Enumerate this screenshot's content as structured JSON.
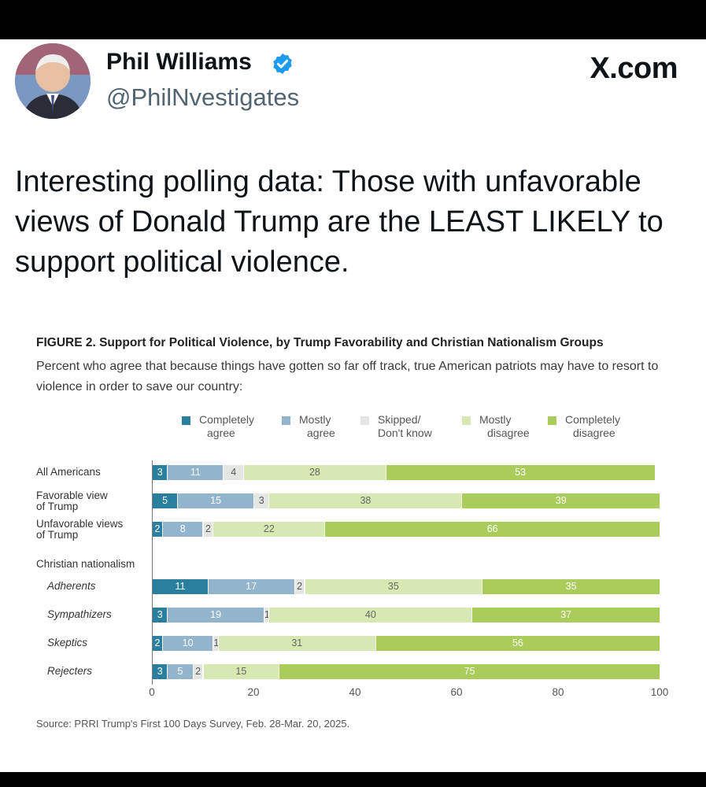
{
  "tweet": {
    "author_name": "Phil Williams",
    "handle": "@PhilNvestigates",
    "site_logo": "X.com",
    "text": "Interesting polling data: Those with unfavorable views of Donald Trump are the LEAST LIKELY to support political violence.",
    "verified_color": "#1d9bf0"
  },
  "figure": {
    "title": "FIGURE 2.  Support for Political Violence, by Trump Favorability and Christian Nationalism Groups",
    "subtitle": "Percent who agree that because things have gotten so far off track, true American patriots may have to resort to violence in order to save our country:",
    "source": "Source: PRRI Trump's First 100 Days Survey, Feb. 28-Mar. 20, 2025.",
    "group_label": "Christian nationalism"
  },
  "chart_data": {
    "type": "bar",
    "orientation": "horizontal",
    "stacked": true,
    "xlim": [
      0,
      100
    ],
    "x_ticks": [
      "0",
      "20",
      "40",
      "60",
      "80",
      "100"
    ],
    "legend": [
      {
        "name": "Completely agree",
        "color": "#2a7f9e"
      },
      {
        "name": "Mostly agree",
        "color": "#92b4cc"
      },
      {
        "name": "Skipped/ Don't know",
        "color": "#e4e6e3"
      },
      {
        "name": "Mostly disagree",
        "color": "#d8e8b2"
      },
      {
        "name": "Completely disagree",
        "color": "#a9cc5a"
      }
    ],
    "legend_labels": [
      [
        "Completely",
        "agree"
      ],
      [
        "Mostly",
        "agree"
      ],
      [
        "Skipped/",
        "Don't know"
      ],
      [
        "Mostly",
        "disagree"
      ],
      [
        "Completely",
        "disagree"
      ]
    ],
    "categories": [
      "All Americans",
      "Favorable view of Trump",
      "Unfavorable views of Trump",
      "Adherents",
      "Sympathizers",
      "Skeptics",
      "Rejecters"
    ],
    "category_lines": [
      [
        "All Americans"
      ],
      [
        "Favorable view",
        "of Trump"
      ],
      [
        "Unfavorable views",
        "of Trump"
      ],
      [
        "Adherents"
      ],
      [
        "Sympathizers"
      ],
      [
        "Skeptics"
      ],
      [
        "Rejecters"
      ]
    ],
    "italic": [
      false,
      false,
      false,
      true,
      true,
      true,
      true
    ],
    "series": [
      {
        "name": "Completely agree",
        "values": [
          3,
          5,
          2,
          11,
          3,
          2,
          3
        ]
      },
      {
        "name": "Mostly agree",
        "values": [
          11,
          15,
          8,
          17,
          19,
          10,
          5
        ]
      },
      {
        "name": "Skipped/ Don't know",
        "values": [
          4,
          3,
          2,
          2,
          1,
          1,
          2
        ]
      },
      {
        "name": "Mostly disagree",
        "values": [
          28,
          38,
          22,
          35,
          40,
          31,
          15
        ]
      },
      {
        "name": "Completely disagree",
        "values": [
          53,
          39,
          66,
          35,
          37,
          56,
          75
        ]
      }
    ]
  }
}
